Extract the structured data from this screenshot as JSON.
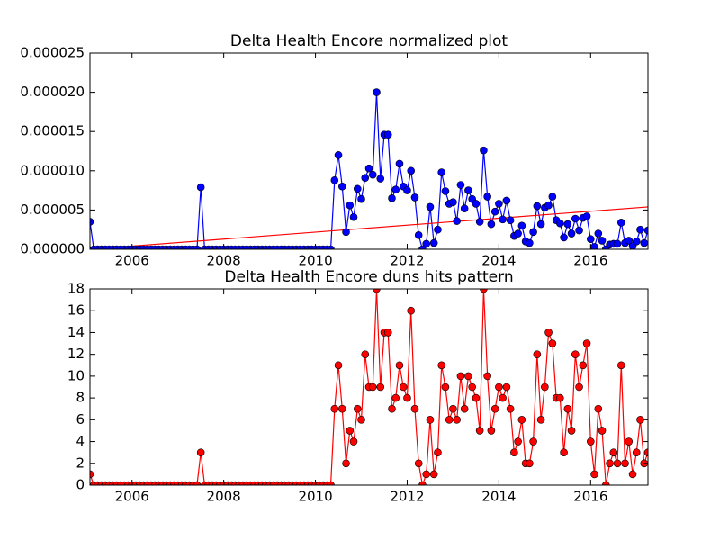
{
  "chart_data": [
    {
      "type": "line",
      "title": "Delta Health Encore normalized plot",
      "color": "#0000ff",
      "marker": "circle",
      "x": [
        2005.083,
        2005.167,
        2005.25,
        2005.333,
        2005.417,
        2005.5,
        2005.583,
        2005.667,
        2005.75,
        2005.833,
        2005.917,
        2006,
        2006.083,
        2006.167,
        2006.25,
        2006.333,
        2006.417,
        2006.5,
        2006.583,
        2006.667,
        2006.75,
        2006.833,
        2006.917,
        2007,
        2007.083,
        2007.167,
        2007.25,
        2007.333,
        2007.417,
        2007.5,
        2007.583,
        2007.667,
        2007.75,
        2007.833,
        2007.917,
        2008,
        2008.083,
        2008.167,
        2008.25,
        2008.333,
        2008.417,
        2008.5,
        2008.583,
        2008.667,
        2008.75,
        2008.833,
        2008.917,
        2009,
        2009.083,
        2009.167,
        2009.25,
        2009.333,
        2009.417,
        2009.5,
        2009.583,
        2009.667,
        2009.75,
        2009.833,
        2009.917,
        2010,
        2010.083,
        2010.167,
        2010.25,
        2010.333,
        2010.417,
        2010.5,
        2010.583,
        2010.667,
        2010.75,
        2010.833,
        2010.917,
        2011,
        2011.083,
        2011.167,
        2011.25,
        2011.333,
        2011.417,
        2011.5,
        2011.583,
        2011.667,
        2011.75,
        2011.833,
        2011.917,
        2012,
        2012.083,
        2012.167,
        2012.25,
        2012.333,
        2012.417,
        2012.5,
        2012.583,
        2012.667,
        2012.75,
        2012.833,
        2012.917,
        2013,
        2013.083,
        2013.167,
        2013.25,
        2013.333,
        2013.417,
        2013.5,
        2013.583,
        2013.667,
        2013.75,
        2013.833,
        2013.917,
        2014,
        2014.083,
        2014.167,
        2014.25,
        2014.333,
        2014.417,
        2014.5,
        2014.583,
        2014.667,
        2014.75,
        2014.833,
        2014.917,
        2015,
        2015.083,
        2015.167,
        2015.25,
        2015.333,
        2015.417,
        2015.5,
        2015.583,
        2015.667,
        2015.75,
        2015.833,
        2015.917,
        2016,
        2016.083,
        2016.167,
        2016.25,
        2016.333,
        2016.417,
        2016.5,
        2016.583,
        2016.667,
        2016.75,
        2016.833,
        2016.917,
        2017,
        2017.083,
        2017.167,
        2017.25
      ],
      "values": [
        3.5e-06,
        0,
        0,
        0,
        0,
        0,
        0,
        0,
        0,
        0,
        0,
        0,
        0,
        0,
        0,
        0,
        0,
        0,
        0,
        0,
        0,
        0,
        0,
        0,
        0,
        0,
        0,
        0,
        0,
        7.9e-06,
        0,
        0,
        0,
        0,
        0,
        0,
        0,
        0,
        0,
        0,
        0,
        0,
        0,
        0,
        0,
        0,
        0,
        0,
        0,
        0,
        0,
        0,
        0,
        0,
        0,
        0,
        0,
        0,
        0,
        0,
        0,
        0,
        0,
        0,
        8.8e-06,
        1.2e-05,
        8e-06,
        2.2e-06,
        5.6e-06,
        4.1e-06,
        7.7e-06,
        6.4e-06,
        9.1e-06,
        1.03e-05,
        9.5e-06,
        2e-05,
        9e-06,
        1.46e-05,
        1.46e-05,
        6.5e-06,
        7.6e-06,
        1.09e-05,
        8e-06,
        7.5e-06,
        1e-05,
        6.6e-06,
        1.8e-06,
        0,
        7e-07,
        5.4e-06,
        8e-07,
        2.5e-06,
        9.8e-06,
        7.4e-06,
        5.8e-06,
        6e-06,
        3.6e-06,
        8.2e-06,
        5.2e-06,
        7.5e-06,
        6.4e-06,
        5.8e-06,
        3.5e-06,
        1.26e-05,
        6.7e-06,
        3.2e-06,
        4.8e-06,
        5.8e-06,
        3.8e-06,
        6.2e-06,
        3.7e-06,
        1.7e-06,
        2e-06,
        3e-06,
        1e-06,
        8e-07,
        2.2e-06,
        5.5e-06,
        3.2e-06,
        5.3e-06,
        5.6e-06,
        6.7e-06,
        3.7e-06,
        3.3e-06,
        1.5e-06,
        3.2e-06,
        2e-06,
        3.9e-06,
        2.4e-06,
        4e-06,
        4.2e-06,
        1.3e-06,
        3e-07,
        2e-06,
        1.1e-06,
        0,
        6e-07,
        7e-07,
        7e-07,
        3.4e-06,
        8e-07,
        1.1e-06,
        4e-07,
        1e-06,
        2.5e-06,
        8e-07,
        2.4e-06
      ],
      "trend_line": {
        "color": "#ff0000",
        "x": [
          2005.083,
          2017.25
        ],
        "values": [
          0,
          5.4e-06
        ]
      },
      "xlim": [
        2005.083,
        2017.25
      ],
      "xticks": [
        2006,
        2008,
        2010,
        2012,
        2014,
        2016
      ],
      "ylim": [
        0,
        2.5e-05
      ],
      "yticks": [
        {
          "value": 0,
          "label": "0.000000"
        },
        5e-06,
        {
          "value": 1e-05,
          "label": "0.000010"
        },
        1.5e-05,
        {
          "value": 2e-05,
          "label": "0.000020"
        },
        2.5e-05
      ]
    },
    {
      "type": "line",
      "title": "Delta Health Encore duns hits pattern",
      "color": "#ff0000",
      "marker": "circle",
      "x": [
        2005.083,
        2005.167,
        2005.25,
        2005.333,
        2005.417,
        2005.5,
        2005.583,
        2005.667,
        2005.75,
        2005.833,
        2005.917,
        2006,
        2006.083,
        2006.167,
        2006.25,
        2006.333,
        2006.417,
        2006.5,
        2006.583,
        2006.667,
        2006.75,
        2006.833,
        2006.917,
        2007,
        2007.083,
        2007.167,
        2007.25,
        2007.333,
        2007.417,
        2007.5,
        2007.583,
        2007.667,
        2007.75,
        2007.833,
        2007.917,
        2008,
        2008.083,
        2008.167,
        2008.25,
        2008.333,
        2008.417,
        2008.5,
        2008.583,
        2008.667,
        2008.75,
        2008.833,
        2008.917,
        2009,
        2009.083,
        2009.167,
        2009.25,
        2009.333,
        2009.417,
        2009.5,
        2009.583,
        2009.667,
        2009.75,
        2009.833,
        2009.917,
        2010,
        2010.083,
        2010.167,
        2010.25,
        2010.333,
        2010.417,
        2010.5,
        2010.583,
        2010.667,
        2010.75,
        2010.833,
        2010.917,
        2011,
        2011.083,
        2011.167,
        2011.25,
        2011.333,
        2011.417,
        2011.5,
        2011.583,
        2011.667,
        2011.75,
        2011.833,
        2011.917,
        2012,
        2012.083,
        2012.167,
        2012.25,
        2012.333,
        2012.417,
        2012.5,
        2012.583,
        2012.667,
        2012.75,
        2012.833,
        2012.917,
        2013,
        2013.083,
        2013.167,
        2013.25,
        2013.333,
        2013.417,
        2013.5,
        2013.583,
        2013.667,
        2013.75,
        2013.833,
        2013.917,
        2014,
        2014.083,
        2014.167,
        2014.25,
        2014.333,
        2014.417,
        2014.5,
        2014.583,
        2014.667,
        2014.75,
        2014.833,
        2014.917,
        2015,
        2015.083,
        2015.167,
        2015.25,
        2015.333,
        2015.417,
        2015.5,
        2015.583,
        2015.667,
        2015.75,
        2015.833,
        2015.917,
        2016,
        2016.083,
        2016.167,
        2016.25,
        2016.333,
        2016.417,
        2016.5,
        2016.583,
        2016.667,
        2016.75,
        2016.833,
        2016.917,
        2017,
        2017.083,
        2017.167,
        2017.25
      ],
      "values": [
        1,
        0,
        0,
        0,
        0,
        0,
        0,
        0,
        0,
        0,
        0,
        0,
        0,
        0,
        0,
        0,
        0,
        0,
        0,
        0,
        0,
        0,
        0,
        0,
        0,
        0,
        0,
        0,
        0,
        3,
        0,
        0,
        0,
        0,
        0,
        0,
        0,
        0,
        0,
        0,
        0,
        0,
        0,
        0,
        0,
        0,
        0,
        0,
        0,
        0,
        0,
        0,
        0,
        0,
        0,
        0,
        0,
        0,
        0,
        0,
        0,
        0,
        0,
        0,
        7,
        11,
        7,
        2,
        5,
        4,
        7,
        6,
        12,
        9,
        9,
        18,
        9,
        14,
        14,
        7,
        8,
        11,
        9,
        8,
        16,
        7,
        2,
        0,
        1,
        6,
        1,
        3,
        11,
        9,
        6,
        7,
        6,
        10,
        7,
        10,
        9,
        8,
        5,
        18,
        10,
        5,
        7,
        9,
        8,
        9,
        7,
        3,
        4,
        6,
        2,
        2,
        4,
        12,
        6,
        9,
        14,
        13,
        8,
        8,
        3,
        7,
        5,
        12,
        9,
        11,
        13,
        4,
        1,
        7,
        5,
        0,
        2,
        3,
        2,
        11,
        2,
        4,
        1,
        3,
        6,
        2,
        3
      ],
      "xlim": [
        2005.083,
        2017.25
      ],
      "xticks": [
        2006,
        2008,
        2010,
        2012,
        2014,
        2016
      ],
      "ylim": [
        0,
        18
      ],
      "yticks": [
        0,
        2,
        4,
        6,
        8,
        10,
        12,
        14,
        16,
        18
      ]
    }
  ]
}
